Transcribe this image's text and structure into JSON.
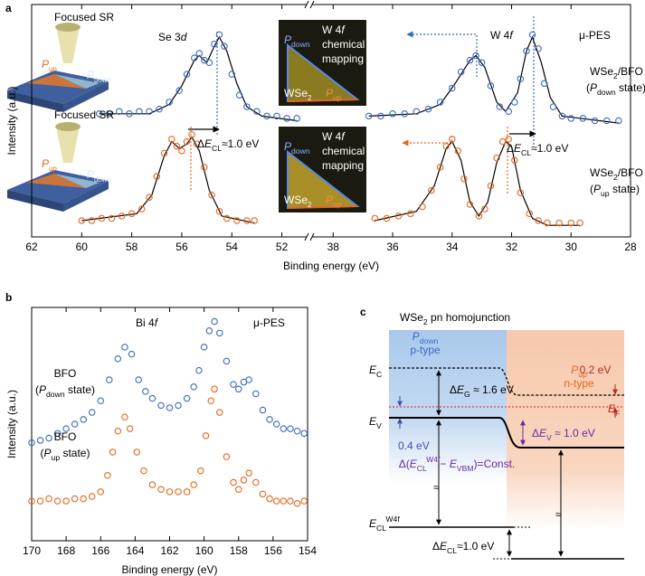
{
  "panel_labels": [
    "a",
    "b",
    "c"
  ],
  "chart_data": [
    {
      "type": "scatter",
      "xlabel": "Binding energy (eV)",
      "ylabel": "Intensity (a.u.)",
      "ylim": [
        0,
        100
      ],
      "x_segments": [
        {
          "xlim": [
            62,
            50.9
          ],
          "xticks": [
            62,
            60,
            58,
            56,
            54,
            52
          ]
        },
        {
          "xlim": [
            38.8,
            28
          ],
          "xticks": [
            38,
            36,
            34,
            32,
            30,
            28
          ]
        }
      ],
      "series": [
        {
          "color": "#3b6bbf",
          "x": [
            59.3,
            58.9,
            58.5,
            58.1,
            57.7,
            57.3,
            56.9,
            56.5,
            56.1,
            55.8,
            55.5,
            55.3,
            55.1,
            54.9,
            54.7,
            54.5,
            54.3,
            54.0,
            53.7,
            53.4,
            53.0,
            52.6,
            52.2,
            51.8,
            51.4
          ],
          "values": [
            53,
            53,
            54,
            53,
            54,
            54,
            55,
            58,
            63,
            70,
            77,
            79,
            76,
            75,
            83,
            87,
            82,
            70,
            61,
            56,
            54,
            52,
            52,
            51,
            51
          ]
        },
        {
          "color": "#3b6bbf",
          "x": [
            36.8,
            36.4,
            36.0,
            35.6,
            35.2,
            34.8,
            34.4,
            34.0,
            33.7,
            33.4,
            33.2,
            33.0,
            32.7,
            32.4,
            32.1,
            31.9,
            31.7,
            31.5,
            31.3,
            31.1,
            30.9,
            30.6,
            30.3,
            30.0,
            29.6,
            29.2,
            28.8,
            28.4
          ],
          "values": [
            52,
            52,
            53,
            53,
            54,
            55,
            58,
            64,
            71,
            76,
            78,
            75,
            65,
            56,
            54,
            58,
            68,
            80,
            87,
            81,
            66,
            56,
            52,
            51,
            51,
            50,
            50,
            50
          ]
        },
        {
          "color": "#e8661c",
          "x": [
            60.0,
            59.6,
            59.2,
            58.8,
            58.4,
            58.0,
            57.6,
            57.3,
            57.0,
            56.7,
            56.4,
            56.2,
            56.0,
            55.8,
            55.6,
            55.4,
            55.1,
            54.8,
            54.5,
            54.2,
            53.8,
            53.4,
            53.1
          ],
          "values": [
            7,
            7,
            8,
            8,
            9,
            10,
            12,
            17,
            26,
            36,
            42,
            39,
            37,
            41,
            44,
            40,
            30,
            18,
            11,
            8,
            7,
            7,
            7
          ]
        },
        {
          "color": "#e8661c",
          "x": [
            36.6,
            36.2,
            35.8,
            35.4,
            35.0,
            34.7,
            34.4,
            34.2,
            34.0,
            33.8,
            33.6,
            33.4,
            33.1,
            32.9,
            32.7,
            32.5,
            32.3,
            32.1,
            31.9,
            31.7,
            31.4,
            31.1,
            30.8,
            30.4,
            30.0,
            29.7
          ],
          "values": [
            8,
            8,
            9,
            10,
            13,
            20,
            30,
            39,
            42,
            37,
            25,
            14,
            9,
            12,
            22,
            34,
            41,
            42,
            33,
            19,
            10,
            7,
            6,
            6,
            6,
            6
          ]
        }
      ],
      "fits": [
        {
          "color": "#000000",
          "x": [
            59.3,
            57.3,
            56.5,
            56.0,
            55.5,
            55.3,
            55.0,
            54.7,
            54.5,
            54.2,
            53.8,
            53.4,
            52.8,
            51.4
          ],
          "values": [
            53,
            53,
            57,
            65,
            76,
            78,
            75,
            82,
            86,
            80,
            66,
            56,
            52,
            50
          ]
        },
        {
          "color": "#000000",
          "x": [
            36.8,
            35.2,
            34.4,
            33.9,
            33.4,
            33.2,
            32.9,
            32.5,
            32.2,
            31.8,
            31.5,
            31.3,
            31.0,
            30.7,
            30.3,
            28.4
          ],
          "values": [
            52,
            53,
            57,
            66,
            76,
            78,
            73,
            58,
            54,
            62,
            80,
            86,
            75,
            60,
            52,
            49
          ]
        },
        {
          "color": "#000000",
          "x": [
            60.0,
            57.8,
            57.2,
            56.7,
            56.4,
            56.1,
            55.8,
            55.6,
            55.3,
            54.9,
            54.4,
            53.1
          ],
          "values": [
            7,
            10,
            18,
            35,
            41,
            38,
            40,
            43,
            37,
            20,
            9,
            6
          ]
        },
        {
          "color": "#000000",
          "x": [
            36.6,
            35.2,
            34.6,
            34.2,
            34.0,
            33.7,
            33.4,
            33.1,
            32.8,
            32.5,
            32.2,
            32.0,
            31.7,
            31.3,
            30.8,
            29.7
          ],
          "values": [
            7,
            11,
            22,
            38,
            41,
            33,
            15,
            9,
            15,
            32,
            41,
            39,
            20,
            8,
            5,
            5
          ]
        }
      ],
      "texts": [
        "Focused SR",
        "Focused SR",
        [
          "P",
          "up"
        ],
        [
          "P",
          "down"
        ],
        [
          "P",
          "up"
        ],
        [
          "P",
          "down"
        ],
        [
          "Se 3",
          "d"
        ],
        [
          "W 4",
          "f"
        ],
        "μ-PES",
        [
          "WSe",
          "2",
          "/BFO"
        ],
        [
          "(",
          "P",
          "down",
          " state)"
        ],
        [
          "WSe",
          "2",
          "/BFO"
        ],
        [
          "(",
          "P",
          "up",
          " state)"
        ],
        [
          "Δ",
          "E",
          "CL",
          "≈1.0 eV"
        ],
        [
          "Δ",
          "E",
          "CL",
          "≈1.0 eV"
        ],
        [
          "P",
          "down"
        ],
        [
          "W 4",
          "f"
        ],
        "chemical",
        "mapping",
        [
          "WSe",
          "2"
        ],
        [
          "P",
          "up"
        ],
        [
          "P",
          "down"
        ],
        [
          "W 4",
          "f"
        ],
        "chemical",
        "mapping",
        [
          "WSe",
          "2"
        ],
        [
          "P",
          "up"
        ]
      ]
    },
    {
      "type": "scatter",
      "xlabel": "Binding energy (eV)",
      "ylabel": "Intensity (a.u.)",
      "xlim": [
        170,
        154
      ],
      "xticks": [
        170,
        168,
        166,
        164,
        162,
        160,
        158,
        156,
        154
      ],
      "ylim": [
        0,
        100
      ],
      "series": [
        {
          "color": "#3b6bbf",
          "x": [
            170,
            169.5,
            169,
            168.5,
            168,
            167.5,
            167,
            166.5,
            166,
            165.5,
            165,
            164.6,
            164.2,
            163.8,
            163.4,
            163,
            162.5,
            162,
            161.5,
            161,
            160.6,
            160.3,
            160,
            159.7,
            159.4,
            159.1,
            158.7,
            158.3,
            158,
            157.7,
            157.4,
            157,
            156.6,
            156.2,
            155.8,
            155.4,
            155,
            154.6,
            154.2
          ],
          "values": [
            42,
            43,
            44,
            46,
            48,
            50,
            52,
            55,
            60,
            69,
            78,
            83,
            80,
            69,
            64,
            61,
            58,
            57,
            58,
            61,
            66,
            73,
            83,
            90,
            94,
            89,
            77,
            67,
            65,
            68,
            69,
            63,
            56,
            52,
            50,
            48,
            48,
            47,
            46
          ]
        },
        {
          "color": "#e8661c",
          "x": [
            170,
            169.5,
            169,
            168.5,
            168,
            167.5,
            167,
            166.5,
            166,
            165.6,
            165.3,
            165,
            164.6,
            164.3,
            163.9,
            163.5,
            163,
            162.5,
            162,
            161.5,
            161,
            160.6,
            160.2,
            159.9,
            159.6,
            159.4,
            159.1,
            158.7,
            158.3,
            158,
            157.7,
            157.4,
            157,
            156.6,
            156.2,
            155.8,
            155.4,
            155,
            154.6,
            154.2
          ],
          "values": [
            17,
            17,
            18,
            17,
            17,
            18,
            18,
            19,
            21,
            28,
            38,
            47,
            53,
            48,
            38,
            30,
            24,
            22,
            21,
            21,
            21,
            24,
            30,
            45,
            60,
            65,
            55,
            36,
            25,
            22,
            26,
            29,
            25,
            20,
            18,
            17,
            17,
            17,
            16,
            17
          ]
        }
      ],
      "texts": [
        [
          "Bi 4",
          "f"
        ],
        "μ-PES",
        "BFO",
        [
          "(",
          "P",
          "down",
          " state)"
        ],
        "BFO",
        [
          "(",
          "P",
          "up",
          " state)"
        ]
      ]
    }
  ],
  "diagram": {
    "texts": [
      [
        "WSe",
        "2",
        " pn homojunction"
      ],
      [
        "P",
        "down"
      ],
      "p-type",
      [
        "P",
        "up"
      ],
      "n-type",
      [
        "E",
        "C"
      ],
      "0.2 eV",
      [
        "E",
        "F"
      ],
      [
        "E",
        "V"
      ],
      [
        "Δ",
        "E",
        "G",
        " ≈ 1.6 eV"
      ],
      "0.4 eV",
      [
        "Δ",
        "E",
        "V",
        " ≈ 1.0 eV"
      ],
      [
        "Δ(",
        "E",
        "CL",
        "W4f",
        "− ",
        "E",
        "VBM",
        ")=Const."
      ],
      "≈",
      "≈",
      [
        "E",
        "CL",
        "W4f"
      ],
      [
        "Δ",
        "E",
        "CL",
        "≈1.0 eV"
      ]
    ]
  }
}
